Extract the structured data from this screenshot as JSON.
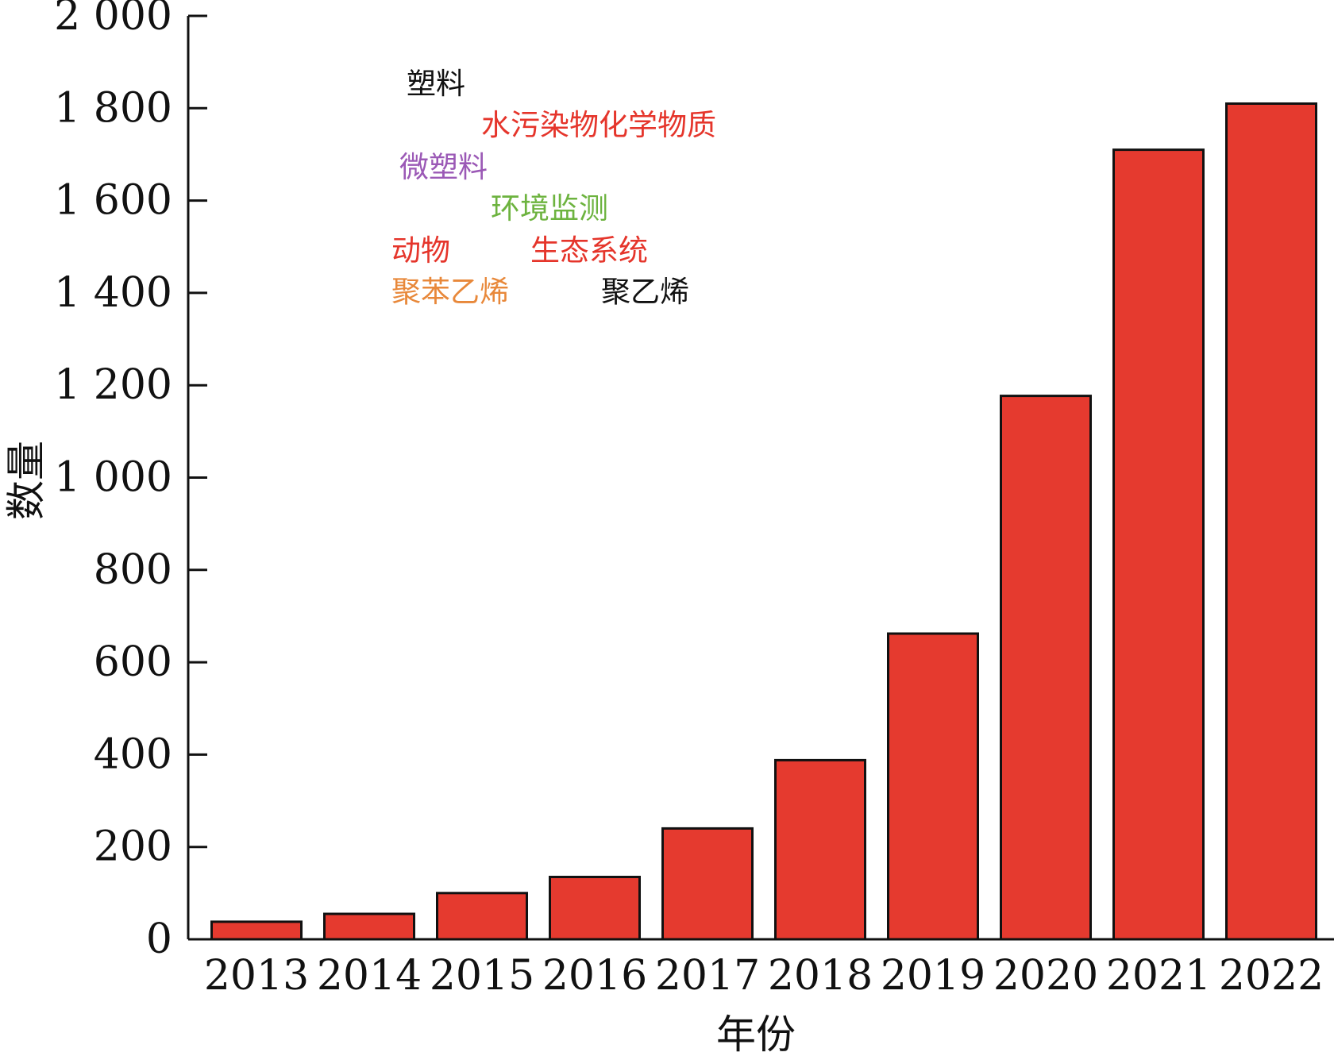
{
  "chart_data": {
    "type": "bar",
    "categories": [
      "2013",
      "2014",
      "2015",
      "2016",
      "2017",
      "2018",
      "2019",
      "2020",
      "2021",
      "2022"
    ],
    "values": [
      38,
      55,
      100,
      135,
      240,
      388,
      662,
      1177,
      1710,
      1810
    ],
    "xlabel": "年份",
    "ylabel": "数量",
    "ylim": [
      0,
      2000
    ],
    "yticks": [
      0,
      200,
      400,
      600,
      800,
      1000,
      1200,
      1400,
      1600,
      1800,
      2000
    ],
    "ytick_labels": [
      "0",
      "200",
      "400",
      "600",
      "800",
      "1 000",
      "1 200",
      "1 400",
      "1 600",
      "1 800",
      "2 000"
    ],
    "bar_color": "#e53a2f",
    "grid": false,
    "annotations": [
      {
        "text": "塑料",
        "color": "#111111"
      },
      {
        "text": "水污染物化学物质",
        "color": "#e5352b"
      },
      {
        "text": "微塑料",
        "color": "#9b59b6"
      },
      {
        "text": "环境监测",
        "color": "#6db33f"
      },
      {
        "text": "动物",
        "color": "#e5352b"
      },
      {
        "text": "生态系统",
        "color": "#e5352b"
      },
      {
        "text": "聚苯乙烯",
        "color": "#e8883a"
      },
      {
        "text": "聚乙烯",
        "color": "#111111"
      }
    ]
  }
}
